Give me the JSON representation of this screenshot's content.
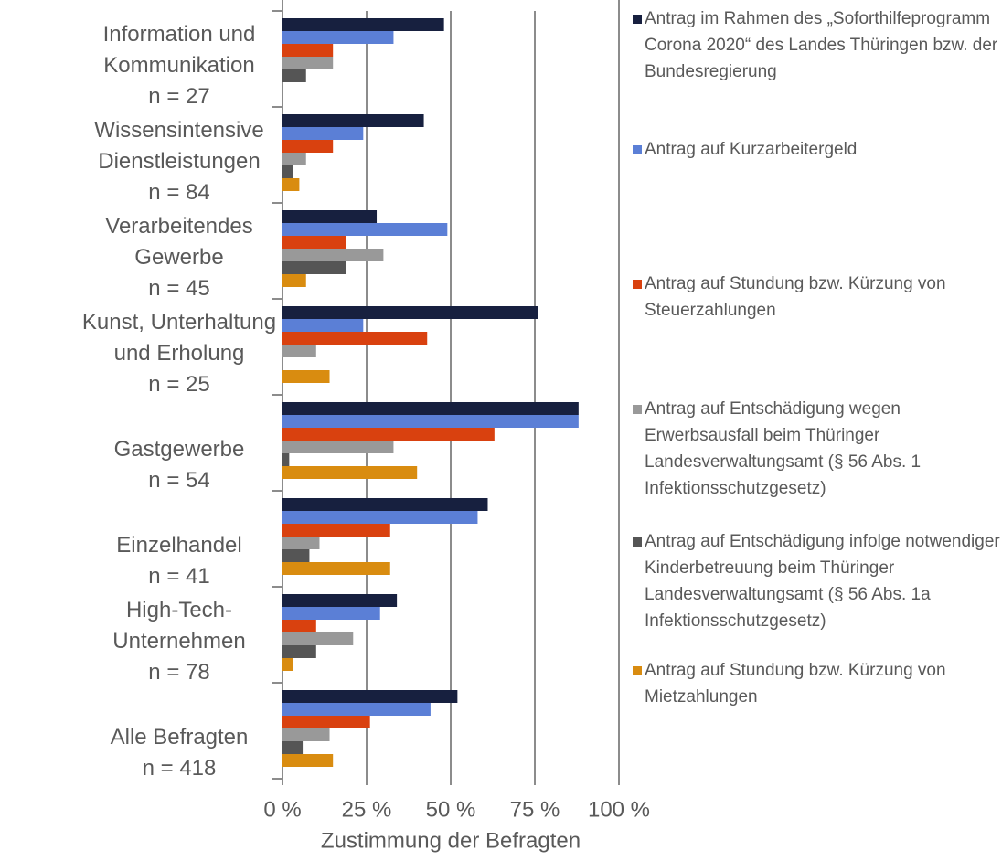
{
  "chart_data": {
    "type": "bar",
    "orientation": "horizontal",
    "xlabel": "Zustimmung der Befragten",
    "categories": [
      [
        "Information und",
        "Kommunikation",
        "n = 27"
      ],
      [
        "Wissensintensive",
        "Dienstleistungen",
        "n = 84"
      ],
      [
        "Verarbeitendes",
        "Gewerbe",
        "n = 45"
      ],
      [
        "Kunst, Unterhaltung",
        "und Erholung",
        "n = 25"
      ],
      [
        "Gastgewerbe",
        "n = 54"
      ],
      [
        "Einzelhandel",
        "n = 41"
      ],
      [
        "High-Tech-",
        "Unternehmen",
        "n = 78"
      ],
      [
        "Alle Befragten",
        "n = 418"
      ]
    ],
    "series": [
      {
        "name": "Antrag im Rahmen des „Soforthilfeprogramm Corona 2020“ des Landes Thüringen bzw. der Bundesregierung",
        "color": "#17203f",
        "values": [
          48,
          42,
          28,
          76,
          88,
          61,
          34,
          52
        ]
      },
      {
        "name": "Antrag auf Kurzarbeitergeld",
        "color": "#5b7fd6",
        "values": [
          33,
          24,
          49,
          24,
          88,
          58,
          29,
          44
        ]
      },
      {
        "name": "Antrag auf Stundung bzw. Kürzung von Steuerzahlungen",
        "color": "#d9410f",
        "values": [
          15,
          15,
          19,
          43,
          63,
          32,
          10,
          26
        ]
      },
      {
        "name": "Antrag auf Entschädigung wegen Erwerbsausfall beim Thüringer Landesverwaltungsamt (§ 56 Abs. 1 Infektionsschutzgesetz)",
        "color": "#999999",
        "values": [
          15,
          7,
          30,
          10,
          33,
          11,
          21,
          14
        ]
      },
      {
        "name": "Antrag auf Entschädigung infolge notwendiger Kinderbetreuung beim Thüringer Landesverwaltungsamt (§ 56 Abs. 1a Infektionsschutzgesetz)",
        "color": "#555555",
        "values": [
          7,
          3,
          19,
          0,
          2,
          8,
          10,
          6
        ]
      },
      {
        "name": "Antrag auf Stundung bzw. Kürzung von Mietzahlungen",
        "color": "#d98c10",
        "values": [
          0,
          5,
          7,
          14,
          40,
          32,
          3,
          15
        ]
      }
    ],
    "xlim": [
      0,
      100
    ],
    "xticks": [
      {
        "value": 0,
        "label": "0 %"
      },
      {
        "value": 25,
        "label": "25 %"
      },
      {
        "value": 50,
        "label": "50 %"
      },
      {
        "value": 75,
        "label": "75 %"
      },
      {
        "value": 100,
        "label": "100 %"
      }
    ],
    "grid": true,
    "legend": "right"
  }
}
